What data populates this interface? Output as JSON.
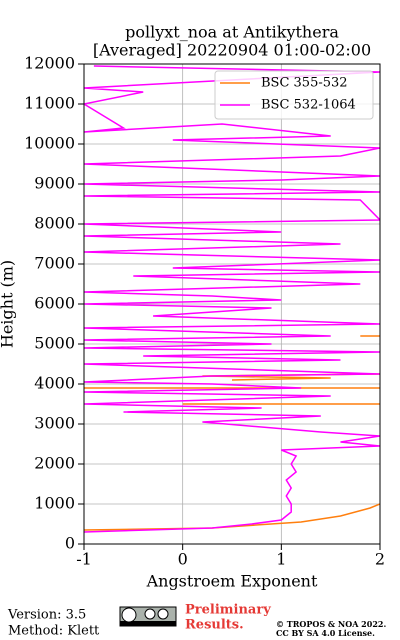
{
  "chart_data": {
    "type": "line",
    "title": "pollyxt_noa at Antikythera",
    "subtitle": "[Averaged] 20220904 01:00-02:00",
    "xlabel": "Angstroem Exponent",
    "ylabel": "Height (m)",
    "xlim": [
      -1,
      2
    ],
    "xticks": [
      -1,
      0,
      1,
      2
    ],
    "ylim": [
      0,
      12000
    ],
    "yticks": [
      0,
      1000,
      2000,
      3000,
      4000,
      5000,
      6000,
      7000,
      8000,
      9000,
      10000,
      11000,
      12000
    ],
    "grid": true,
    "legend": "upper right",
    "series": [
      {
        "name": "BSC 355-532",
        "color": "#ff7f0e",
        "x": [
          -1,
          0.3,
          1.2,
          1.6,
          1.9,
          2.0,
          null,
          0,
          2.0,
          null,
          -1,
          2.0,
          null,
          0.5,
          1.5,
          0.2,
          2.0,
          null,
          1.8,
          2.0
        ],
        "y": [
          350,
          400,
          550,
          700,
          900,
          1000,
          null,
          3500,
          3500,
          null,
          3900,
          3900,
          null,
          4100,
          4150,
          4200,
          4250,
          null,
          5200,
          5200
        ]
      },
      {
        "name": "BSC 532-1064",
        "color": "#ff00ff",
        "x": [
          -1,
          0.3,
          0.7,
          1.0,
          1.1,
          1.1,
          1.05,
          1.1,
          1.05,
          1.15,
          1.1,
          1.15,
          1.0,
          1.5,
          2.0,
          1.6,
          2.0,
          1.4,
          0.2,
          1.4,
          -0.6,
          0.8,
          -1,
          1.5,
          -1,
          1.2,
          0.3,
          -1,
          0.3,
          2.0,
          0.2,
          -1,
          1.6,
          -0.4,
          2.0,
          -1,
          0.9,
          -1,
          1.5,
          -1,
          2.0,
          -0.3,
          0.9,
          -1,
          1.0,
          0.3,
          -1,
          1.8,
          -0.5,
          2.0,
          -0.1,
          2.0,
          -1,
          1.6,
          -1,
          1.0,
          -1,
          2.0,
          1.8,
          -1,
          2.0,
          -1,
          1.0,
          2.0,
          -1,
          1.6,
          2.0,
          -0.1,
          1.5,
          0.4,
          -1,
          -0.6,
          -1,
          -0.4,
          -1,
          2.0,
          -0.9
        ],
        "y": [
          300,
          400,
          500,
          600,
          800,
          1000,
          1200,
          1400,
          1600,
          1800,
          2000,
          2200,
          2350,
          2400,
          2450,
          2550,
          2700,
          2800,
          3050,
          3200,
          3300,
          3400,
          3500,
          3700,
          3800,
          3900,
          4000,
          4050,
          4200,
          4250,
          4400,
          4500,
          4600,
          4700,
          4800,
          4900,
          5000,
          5100,
          5200,
          5400,
          5500,
          5700,
          5900,
          6000,
          6100,
          6200,
          6300,
          6500,
          6700,
          6800,
          6900,
          7100,
          7300,
          7500,
          7700,
          7800,
          8000,
          8100,
          8600,
          8700,
          8800,
          9000,
          9100,
          9200,
          9500,
          9700,
          9900,
          10100,
          10200,
          10500,
          10300,
          10400,
          11000,
          11300,
          11400,
          11800,
          11950
        ]
      }
    ]
  },
  "footer": {
    "version": "Version: 3.5",
    "method": "Method: Klett",
    "preliminary": [
      "Preliminary",
      "Results."
    ],
    "copyright": "© TROPOS & NOA 2022.",
    "license": "CC BY SA 4.0 License."
  }
}
